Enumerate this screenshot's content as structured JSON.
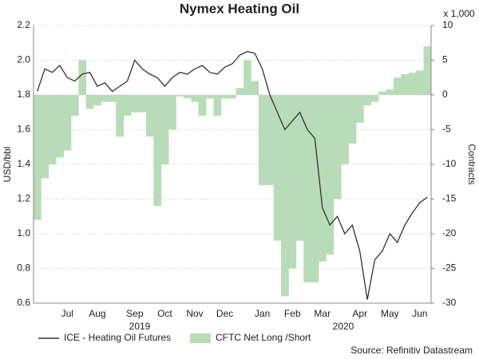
{
  "chart_data": {
    "type": "line-bar-combo",
    "title": "Nymex Heating Oil",
    "y_label": "USD/bbl",
    "y2_label": "Contracts",
    "y2_unit": "x 1,000",
    "source": "Source: Refinitiv Datastream",
    "categories": [
      null,
      null,
      null,
      null,
      "Jul",
      null,
      null,
      null,
      "Aug",
      null,
      null,
      null,
      null,
      "Sep",
      null,
      null,
      null,
      "Oct",
      null,
      null,
      null,
      "Nov",
      null,
      null,
      null,
      "Dec",
      null,
      null,
      null,
      null,
      "Jan",
      null,
      null,
      null,
      "Feb",
      null,
      null,
      null,
      "Mar",
      null,
      null,
      null,
      null,
      "Apr",
      null,
      null,
      null,
      "May",
      null,
      null,
      null,
      "Jun",
      null
    ],
    "x_groups": [
      "2019",
      "2020"
    ],
    "series": [
      {
        "name": "ICE - Heating Oil Futures",
        "kind": "line",
        "color": "#333333",
        "values": [
          1.82,
          1.95,
          1.93,
          1.97,
          1.9,
          1.88,
          1.92,
          1.93,
          1.85,
          1.87,
          1.82,
          1.85,
          1.88,
          2.0,
          1.95,
          1.92,
          1.9,
          1.85,
          1.9,
          1.93,
          1.92,
          1.95,
          1.97,
          1.93,
          1.92,
          1.96,
          1.98,
          2.03,
          2.05,
          2.04,
          1.95,
          1.8,
          1.7,
          1.6,
          1.65,
          1.7,
          1.6,
          1.55,
          1.15,
          1.05,
          1.1,
          1.0,
          1.05,
          0.9,
          0.62,
          0.85,
          0.9,
          1.0,
          0.95,
          1.05,
          1.12,
          1.18,
          1.21
        ]
      },
      {
        "name": "CFTC Net Long /Short",
        "kind": "bar",
        "axis": "y2",
        "color": "#b7dcb7",
        "values": [
          -18,
          -12,
          -10,
          -9,
          -8,
          -3,
          5,
          -2,
          -1.5,
          -1,
          -1,
          -6,
          -3,
          -2.5,
          -2.5,
          -6,
          -16,
          -10,
          -5,
          -0.2,
          -0.5,
          -1,
          -3,
          -0.5,
          -3,
          -0.5,
          -0.5,
          1,
          5,
          2,
          -13,
          -13,
          -21,
          -29,
          -25,
          -21,
          -27,
          -27,
          -24,
          -23,
          -15,
          -10,
          -7,
          -4,
          -1.5,
          -1,
          0.5,
          0.8,
          2.5,
          3,
          3.2,
          3.5,
          7
        ]
      }
    ],
    "ylim": [
      0.6,
      2.2
    ],
    "yticks": [
      0.6,
      0.8,
      {
        "value": 1,
        "label": "1.0"
      },
      1.2,
      1.4,
      1.6,
      1.8,
      {
        "value": 2,
        "label": "2.0"
      },
      2.2
    ],
    "y2lim": [
      -30,
      10
    ],
    "y2ticks": [
      -30,
      -25,
      -20,
      -15,
      -10,
      -5,
      0,
      5,
      10
    ],
    "grid": true
  }
}
